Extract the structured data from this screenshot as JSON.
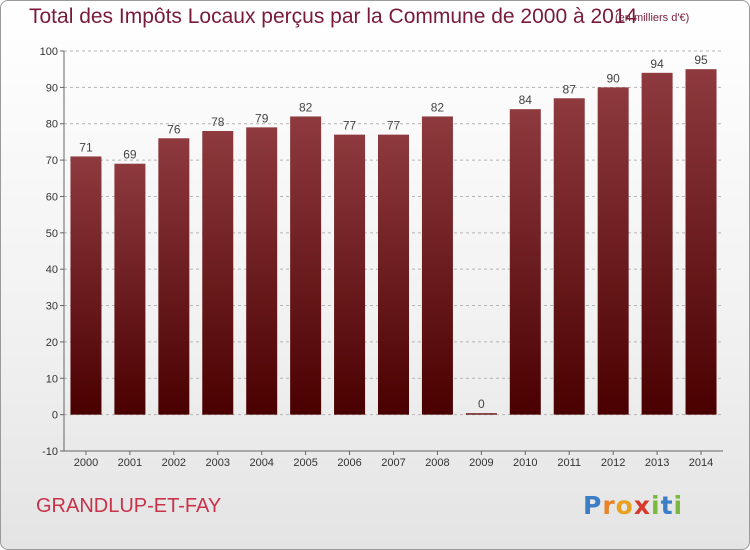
{
  "chart_data": {
    "type": "bar",
    "title": "Total des Impôts Locaux perçus par la Commune de 2000 à 2014",
    "subtitle": "(en milliers d'€)",
    "categories": [
      "2000",
      "2001",
      "2002",
      "2003",
      "2004",
      "2005",
      "2006",
      "2007",
      "2008",
      "2009",
      "2010",
      "2011",
      "2012",
      "2013",
      "2014"
    ],
    "values": [
      71,
      69,
      76,
      78,
      79,
      82,
      77,
      77,
      82,
      0,
      84,
      87,
      90,
      94,
      95
    ],
    "ylim": [
      -10,
      100
    ],
    "yticks": [
      -10,
      0,
      10,
      20,
      30,
      40,
      50,
      60,
      70,
      80,
      90,
      100
    ],
    "xlabel": "",
    "ylabel": "",
    "grid": "horizontal dashed",
    "legend": "none"
  },
  "commune": "GRANDLUP-ET-FAY",
  "brand": {
    "letters": [
      "P",
      "r",
      "o",
      "x",
      "i",
      "t",
      "i"
    ],
    "colors": [
      "#3a7ec8",
      "#e8832a",
      "#e8a020",
      "#d63a2e",
      "#7ab840",
      "#3a7ec8",
      "#7ab840"
    ]
  },
  "colors": {
    "title": "#7a1a3a",
    "commune": "#c8324a",
    "bar_top": "#8e3a3e",
    "bar_bottom": "#4a0000"
  }
}
